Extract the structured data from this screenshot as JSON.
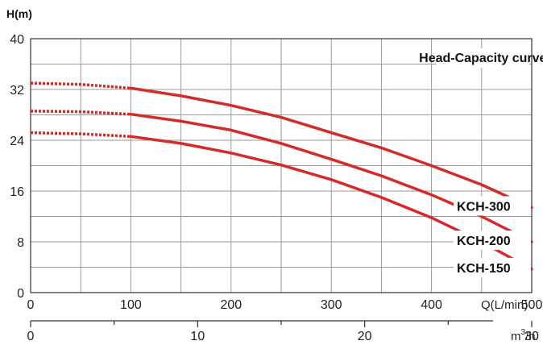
{
  "chart_data": {
    "type": "line",
    "title": "Head-Capacity curve",
    "ylabel": "H(m)",
    "xlabel": "Q(L/min)",
    "ylim": [
      0,
      40
    ],
    "xlim": [
      0,
      500
    ],
    "yticks": [
      0,
      8,
      16,
      24,
      32,
      40
    ],
    "xticks": [
      0,
      100,
      200,
      300,
      400,
      500
    ],
    "secondary_x": {
      "unit_base": "m",
      "unit_sup": "3",
      "unit_tail": "/h",
      "ticks": [
        0,
        10,
        20,
        30
      ],
      "minor_ticks": [
        5,
        15,
        25
      ]
    },
    "grid": true,
    "series": [
      {
        "name": "KCH-300",
        "color": "#d42a2a",
        "dashed_points": [
          [
            0,
            33.0
          ],
          [
            50,
            32.8
          ],
          [
            100,
            32.2
          ]
        ],
        "solid_points": [
          [
            100,
            32.2
          ],
          [
            150,
            31.0
          ],
          [
            200,
            29.5
          ],
          [
            250,
            27.6
          ],
          [
            300,
            25.2
          ],
          [
            350,
            22.8
          ],
          [
            400,
            20.0
          ],
          [
            450,
            17.0
          ],
          [
            500,
            13.4
          ]
        ]
      },
      {
        "name": "KCH-200",
        "color": "#d42a2a",
        "dashed_points": [
          [
            0,
            28.6
          ],
          [
            50,
            28.5
          ],
          [
            100,
            28.1
          ]
        ],
        "solid_points": [
          [
            100,
            28.1
          ],
          [
            150,
            27.0
          ],
          [
            200,
            25.6
          ],
          [
            250,
            23.5
          ],
          [
            300,
            21.0
          ],
          [
            350,
            18.4
          ],
          [
            400,
            15.4
          ],
          [
            450,
            12.0
          ],
          [
            500,
            8.0
          ]
        ]
      },
      {
        "name": "KCH-150",
        "color": "#d42a2a",
        "dashed_points": [
          [
            0,
            25.2
          ],
          [
            50,
            25.0
          ],
          [
            100,
            24.6
          ]
        ],
        "solid_points": [
          [
            100,
            24.6
          ],
          [
            150,
            23.5
          ],
          [
            200,
            22.0
          ],
          [
            250,
            20.1
          ],
          [
            300,
            17.8
          ],
          [
            350,
            15.0
          ],
          [
            400,
            11.8
          ],
          [
            450,
            8.0
          ],
          [
            500,
            3.7
          ]
        ]
      }
    ]
  }
}
